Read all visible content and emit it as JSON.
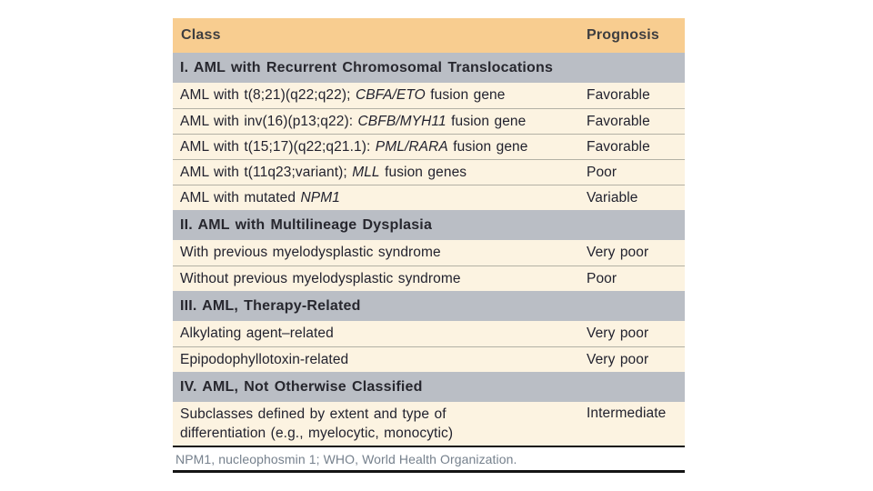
{
  "table": {
    "header": {
      "class_label": "Class",
      "prognosis_label": "Prognosis"
    },
    "sections": [
      {
        "title": "I. AML with Recurrent Chromosomal Translocations",
        "rows": [
          {
            "class_before": "AML with t(8;21)(q22;q22); ",
            "gene": "CBFA/ETO",
            "class_after": " fusion gene",
            "prognosis": "Favorable"
          },
          {
            "class_before": "AML with inv(16)(p13;q22): ",
            "gene": "CBFB/MYH11",
            "class_after": " fusion gene",
            "prognosis": "Favorable"
          },
          {
            "class_before": "AML with t(15;17)(q22;q21.1): ",
            "gene": "PML/RARA",
            "class_after": " fusion gene",
            "prognosis": "Favorable"
          },
          {
            "class_before": "AML with t(11q23;variant); ",
            "gene": "MLL",
            "class_after": " fusion genes",
            "prognosis": "Poor"
          },
          {
            "class_before": "AML with mutated ",
            "gene": "NPM1",
            "class_after": "",
            "prognosis": "Variable"
          }
        ]
      },
      {
        "title": "II. AML with Multilineage Dysplasia",
        "rows": [
          {
            "class_before": "With previous myelodysplastic syndrome",
            "prognosis": "Very poor"
          },
          {
            "class_before": "Without previous myelodysplastic syndrome",
            "prognosis": "Poor"
          }
        ]
      },
      {
        "title": "III. AML, Therapy-Related",
        "rows": [
          {
            "class_before": "Alkylating agent–related",
            "prognosis": "Very poor"
          },
          {
            "class_before": "Epipodophyllotoxin-related",
            "prognosis": "Very poor"
          }
        ]
      },
      {
        "title": "IV. AML, Not Otherwise Classified",
        "rows": [
          {
            "class_line1": "Subclasses defined by extent and type of",
            "class_line2": "differentiation (e.g., myelocytic, monocytic)",
            "prognosis": "Intermediate"
          }
        ]
      }
    ],
    "footnote": "NPM1, nucleophosmin 1; WHO, World Health Organization.",
    "colors": {
      "header_bg": "#f8cd90",
      "section_bg": "#babec5",
      "row_bg": "#fcf3e1",
      "separator": "#b3b1a5",
      "body_text": "#22222e",
      "footnote_text": "#76818d",
      "rule": "#141414"
    }
  }
}
